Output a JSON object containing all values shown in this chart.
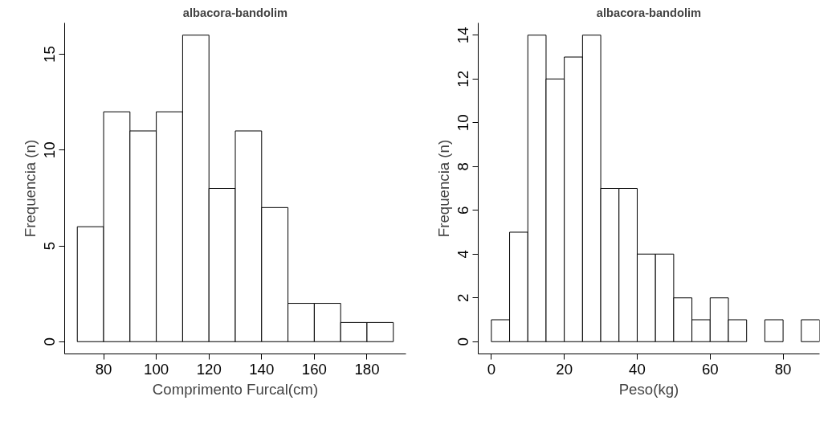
{
  "chart_data": [
    {
      "type": "histogram",
      "title": "albacora-bandolim",
      "xlabel": "Comprimento Furcal(cm)",
      "ylabel": "Frequencia (n)",
      "bins": [
        70,
        80,
        90,
        100,
        110,
        120,
        130,
        140,
        150,
        160,
        170,
        180,
        190
      ],
      "values": [
        6,
        12,
        11,
        12,
        16,
        8,
        11,
        7,
        2,
        2,
        1,
        1
      ],
      "color": "#ffffff",
      "xlim": [
        65.2,
        194.8
      ],
      "xticks": [
        80,
        100,
        120,
        140,
        160,
        180
      ],
      "ylim": [
        -0.64,
        16.64
      ],
      "yticks": [
        0,
        5,
        10,
        15
      ]
    },
    {
      "type": "histogram",
      "title": "albacora-bandolim",
      "xlabel": "Peso(kg)",
      "ylabel": "Frequencia (n)",
      "bins": [
        0,
        5,
        10,
        15,
        20,
        25,
        30,
        35,
        40,
        45,
        50,
        55,
        60,
        65,
        70,
        75,
        80,
        85,
        90
      ],
      "values": [
        1,
        5,
        14,
        12,
        13,
        14,
        7,
        7,
        4,
        4,
        2,
        1,
        2,
        1,
        0,
        1,
        0,
        1
      ],
      "color": "#ffffff",
      "xlim": [
        -3.6,
        90
      ],
      "xticks": [
        0,
        20,
        40,
        60,
        80
      ],
      "ylim": [
        -0.56,
        14.56
      ],
      "yticks": [
        0,
        2,
        4,
        6,
        8,
        10,
        12,
        14
      ]
    }
  ]
}
